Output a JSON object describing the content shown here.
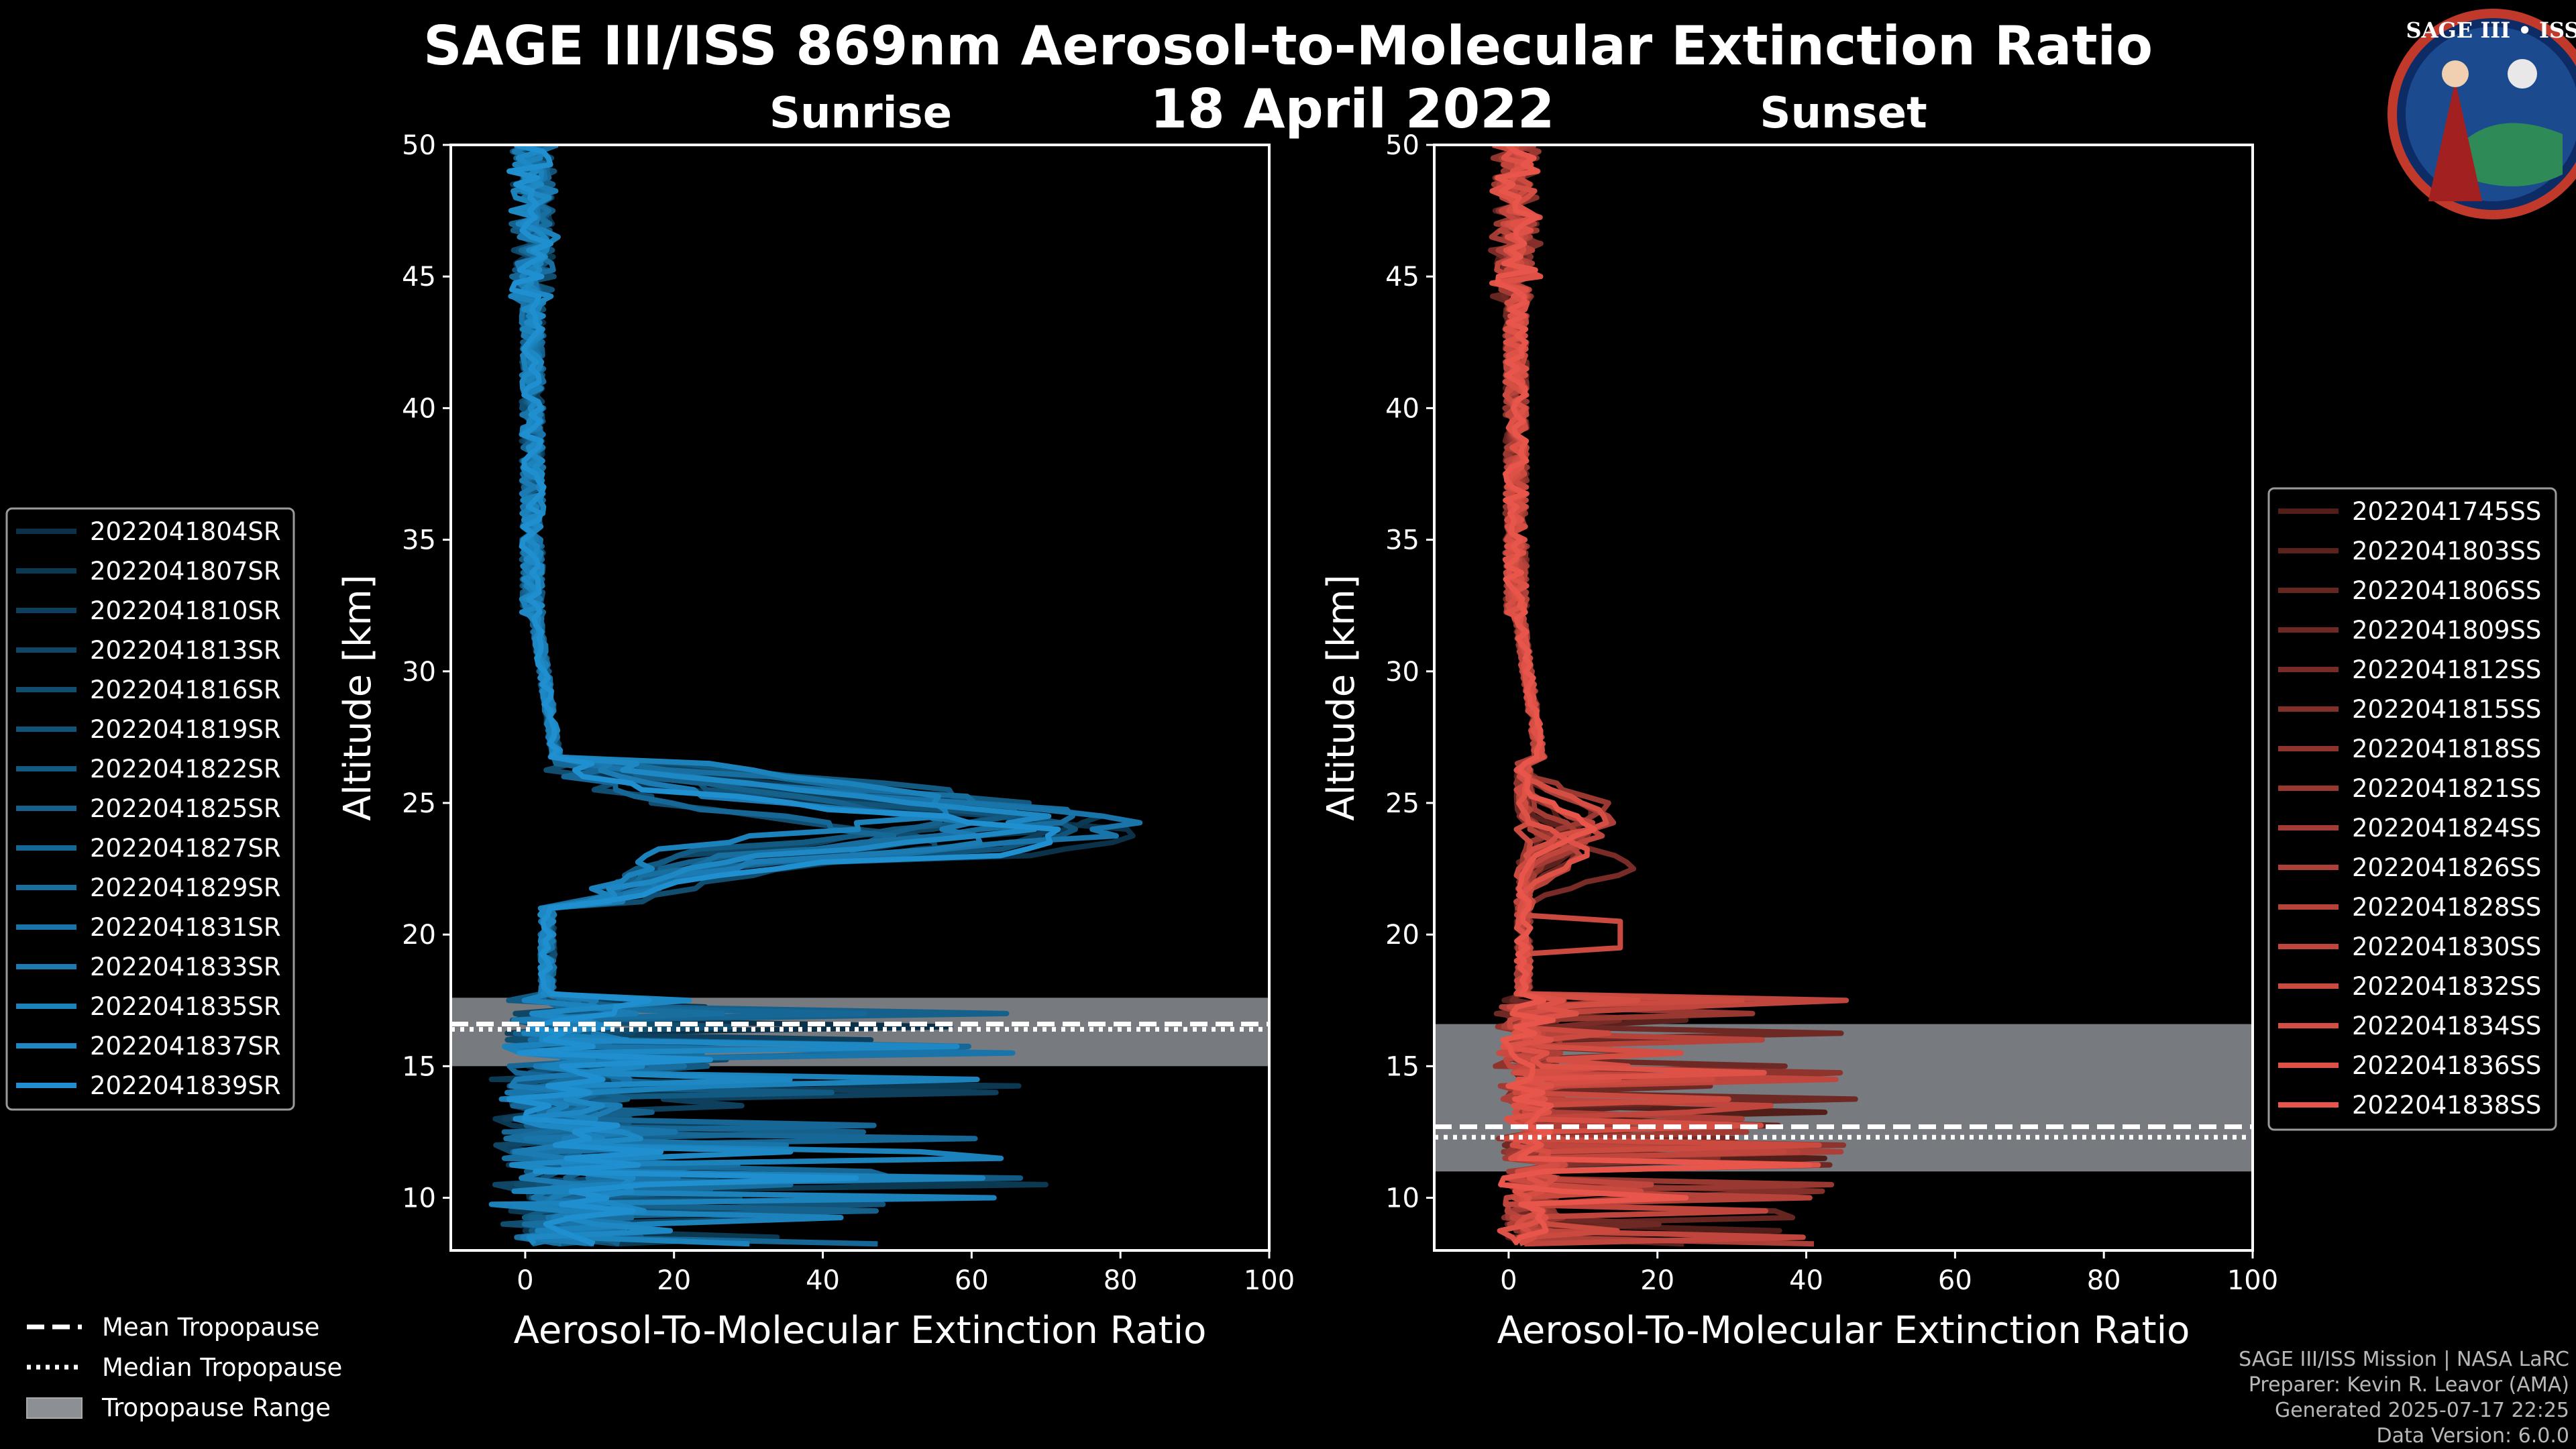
{
  "colors": {
    "background": "#000000",
    "sunrise": "#1f8fcf",
    "sunset": "#e8554a",
    "tropopause_band": "#8c8f94"
  },
  "chart_data": {
    "type": "line",
    "title": "SAGE III/ISS 869nm Aerosol-to-Molecular Extinction Ratio",
    "date": "18 April 2022",
    "panels": [
      {
        "id": "sunrise",
        "subtitle": "Sunrise",
        "xlabel": "Aerosol-To-Molecular Extinction Ratio",
        "ylabel": "Altitude [km]",
        "xlim": [
          -10,
          100
        ],
        "ylim": [
          8,
          50
        ],
        "xticks": [
          0,
          20,
          40,
          60,
          80,
          100
        ],
        "yticks": [
          10,
          15,
          20,
          25,
          30,
          35,
          40,
          45,
          50
        ],
        "tropopause": {
          "mean": 16.6,
          "median": 16.4,
          "range": [
            15.0,
            17.6
          ]
        },
        "series": [
          {
            "name": "2022041804SR",
            "peak": 82,
            "peak_alt": 23.7
          },
          {
            "name": "2022041807SR",
            "peak": 77,
            "peak_alt": 24.4
          },
          {
            "name": "2022041810SR",
            "peak": 70,
            "peak_alt": 24.0
          },
          {
            "name": "2022041813SR",
            "peak": 63,
            "peak_alt": 24.6
          },
          {
            "name": "2022041816SR",
            "peak": 58,
            "peak_alt": 23.2
          },
          {
            "name": "2022041819SR",
            "peak": 75,
            "peak_alt": 23.9
          },
          {
            "name": "2022041822SR",
            "peak": 66,
            "peak_alt": 24.8
          },
          {
            "name": "2022041825SR",
            "peak": 54,
            "peak_alt": 24.2
          },
          {
            "name": "2022041827SR",
            "peak": 48,
            "peak_alt": 23.5
          },
          {
            "name": "2022041829SR",
            "peak": 71,
            "peak_alt": 24.5
          },
          {
            "name": "2022041831SR",
            "peak": 80,
            "peak_alt": 24.1
          },
          {
            "name": "2022041833SR",
            "peak": 61,
            "peak_alt": 23.8
          },
          {
            "name": "2022041835SR",
            "peak": 57,
            "peak_alt": 24.9
          },
          {
            "name": "2022041837SR",
            "peak": 68,
            "peak_alt": 24.3
          },
          {
            "name": "2022041839SR",
            "peak": 74,
            "peak_alt": 23.6
          }
        ]
      },
      {
        "id": "sunset",
        "subtitle": "Sunset",
        "xlabel": "Aerosol-To-Molecular Extinction Ratio",
        "ylabel": "Altitude [km]",
        "xlim": [
          -10,
          100
        ],
        "ylim": [
          8,
          50
        ],
        "xticks": [
          0,
          20,
          40,
          60,
          80,
          100
        ],
        "yticks": [
          10,
          15,
          20,
          25,
          30,
          35,
          40,
          45,
          50
        ],
        "tropopause": {
          "mean": 12.7,
          "median": 12.3,
          "range": [
            11.0,
            16.6
          ]
        },
        "series": [
          {
            "name": "2022041745SS",
            "peak": 8,
            "peak_alt": 24.2
          },
          {
            "name": "2022041803SS",
            "peak": 10,
            "peak_alt": 23.5
          },
          {
            "name": "2022041806SS",
            "peak": 12,
            "peak_alt": 24.6
          },
          {
            "name": "2022041809SS",
            "peak": 9,
            "peak_alt": 23.0
          },
          {
            "name": "2022041812SS",
            "peak": 16,
            "peak_alt": 22.6
          },
          {
            "name": "2022041815SS",
            "peak": 11,
            "peak_alt": 24.0
          },
          {
            "name": "2022041818SS",
            "peak": 7,
            "peak_alt": 23.3
          },
          {
            "name": "2022041821SS",
            "peak": 13,
            "peak_alt": 24.8
          },
          {
            "name": "2022041824SS",
            "peak": 10,
            "peak_alt": 23.7
          },
          {
            "name": "2022041826SS",
            "peak": 14,
            "peak_alt": 24.4
          },
          {
            "name": "2022041828SS",
            "peak": 9,
            "peak_alt": 22.9
          },
          {
            "name": "2022041830SS",
            "peak": 12,
            "peak_alt": 23.9
          },
          {
            "name": "2022041832SS",
            "peak": 15,
            "peak_alt": 20.0
          },
          {
            "name": "2022041834SS",
            "peak": 13,
            "peak_alt": 24.5
          },
          {
            "name": "2022041836SS",
            "peak": 10,
            "peak_alt": 23.1
          },
          {
            "name": "2022041838SS",
            "peak": 11,
            "peak_alt": 24.1
          }
        ]
      }
    ],
    "tropopause_legend": [
      "Mean Tropopause",
      "Median Tropopause",
      "Tropopause Range"
    ]
  },
  "logo": {
    "text": "SAGE III • ISS"
  },
  "credits": [
    "SAGE III/ISS Mission | NASA LaRC",
    "Preparer: Kevin R. Leavor (AMA)",
    "Generated 2025-07-17 22:25",
    "Data Version: 6.0.0"
  ]
}
